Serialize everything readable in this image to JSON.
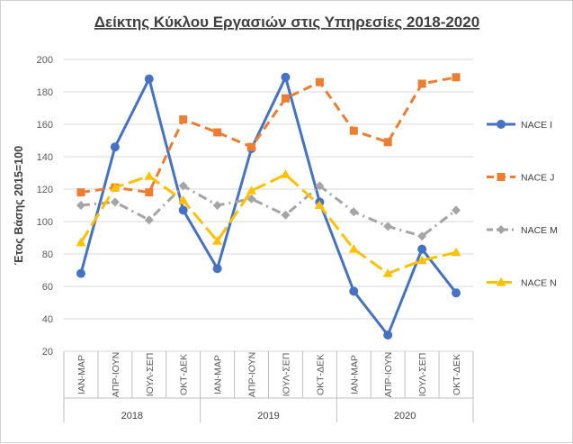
{
  "chart_data": {
    "type": "line",
    "title": "Δείκτης Κύκλου Εργασιών στις Υπηρεσίες 2018-2020",
    "ylabel": "Έτος Βάσης 2015=100",
    "xlabel": "",
    "ylim": [
      20,
      200
    ],
    "yticks": [
      20,
      40,
      60,
      80,
      100,
      120,
      140,
      160,
      180,
      200
    ],
    "grid": true,
    "legend_position": "right",
    "categories": [
      "ΙΑΝ-ΜΑΡ",
      "ΑΠΡ-ΙΟΥΝ",
      "ΙΟΥΛ-ΣΕΠ",
      "ΟΚΤ-ΔΕΚ",
      "ΙΑΝ-ΜΑΡ",
      "ΑΠΡ-ΙΟΥΝ",
      "ΙΟΥΛ-ΣΕΠ",
      "ΟΚΤ-ΔΕΚ",
      "ΙΑΝ-ΜΑΡ",
      "ΑΠΡ-ΙΟΥΝ",
      "ΙΟΥΛ-ΣΕΠ",
      "ΟΚΤ-ΔΕΚ"
    ],
    "groups": [
      {
        "label": "2018",
        "count": 4
      },
      {
        "label": "2019",
        "count": 4
      },
      {
        "label": "2020",
        "count": 4
      }
    ],
    "series": [
      {
        "name": "NACE I",
        "color": "#4472C4",
        "dash": "solid",
        "marker": "circle",
        "values": [
          68,
          146,
          188,
          107,
          71,
          145,
          189,
          112,
          57,
          30,
          83,
          56
        ]
      },
      {
        "name": "NACE J",
        "color": "#ED7D31",
        "dash": "dash",
        "marker": "square",
        "values": [
          118,
          121,
          118,
          163,
          155,
          146,
          176,
          186,
          156,
          149,
          185,
          189
        ]
      },
      {
        "name": "NACE M",
        "color": "#A5A5A5",
        "dash": "dashdot",
        "marker": "diamond",
        "values": [
          110,
          112,
          101,
          122,
          110,
          114,
          104,
          122,
          106,
          97,
          91,
          107
        ]
      },
      {
        "name": "NACE N",
        "color": "#FFC000",
        "dash": "longdash",
        "marker": "triangle",
        "values": [
          87,
          121,
          128,
          113,
          88,
          119,
          129,
          110,
          83,
          68,
          76,
          81
        ]
      }
    ]
  }
}
